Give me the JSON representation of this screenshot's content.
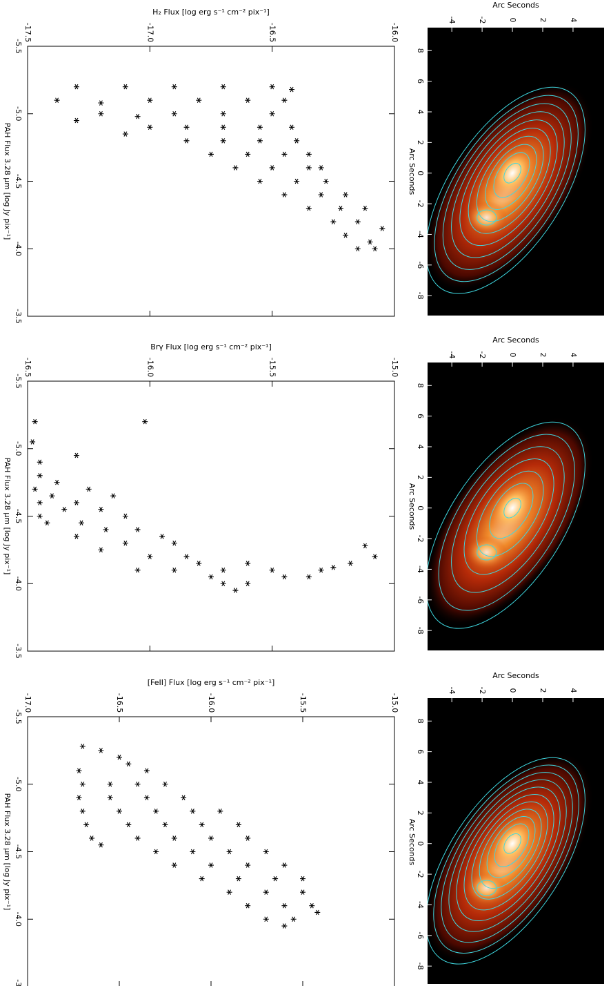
{
  "chart_data": [
    {
      "type": "scatter",
      "ylabel": "H₂ Flux [log erg s⁻¹ cm⁻² pix⁻¹]",
      "xlabel": "PAH Flux 3.28 μm [log Jy pix⁻¹]",
      "xlim": [
        -5.5,
        -3.5
      ],
      "xticks": [
        -5.5,
        {
          "value": -5,
          "label": "-5.0"
        },
        -4.5,
        {
          "value": -4,
          "label": "-4.0"
        },
        -3.5
      ],
      "ylim": [
        -17.5,
        -16.0
      ],
      "yticks": [
        -17.5,
        {
          "value": -17,
          "label": "-17.0"
        },
        -16.5,
        {
          "value": -16,
          "label": "-16.0"
        }
      ],
      "color": "#000000",
      "x": [
        -5.2,
        -5.2,
        -5.2,
        -5.2,
        -5.2,
        -5.18,
        -5.1,
        -5.08,
        -5.1,
        -5.1,
        -5.1,
        -5.1,
        -5.0,
        -4.98,
        -5.0,
        -5.0,
        -5.0,
        -4.9,
        -4.9,
        -4.9,
        -4.9,
        -4.9,
        -4.95,
        -4.85,
        -4.8,
        -4.8,
        -4.8,
        -4.8,
        -4.7,
        -4.7,
        -4.7,
        -4.7,
        -4.6,
        -4.6,
        -4.6,
        -4.6,
        -4.5,
        -4.5,
        -4.5,
        -4.4,
        -4.4,
        -4.4,
        -4.3,
        -4.3,
        -4.3,
        -4.2,
        -4.2,
        -4.15,
        -4.1,
        -4.05,
        -4.0,
        -4.0
      ],
      "values": [
        -17.3,
        -17.1,
        -16.9,
        -16.7,
        -16.5,
        -16.42,
        -17.38,
        -17.2,
        -17.0,
        -16.8,
        -16.6,
        -16.45,
        -17.2,
        -17.05,
        -16.9,
        -16.7,
        -16.5,
        -17.0,
        -16.85,
        -16.7,
        -16.55,
        -16.42,
        -17.3,
        -17.1,
        -16.85,
        -16.7,
        -16.55,
        -16.4,
        -16.75,
        -16.6,
        -16.45,
        -16.35,
        -16.65,
        -16.5,
        -16.35,
        -16.3,
        -16.55,
        -16.4,
        -16.28,
        -16.45,
        -16.3,
        -16.2,
        -16.35,
        -16.22,
        -16.12,
        -16.25,
        -16.15,
        -16.05,
        -16.2,
        -16.1,
        -16.15,
        -16.08
      ]
    },
    {
      "type": "image",
      "xlabel": "Arc Seconds",
      "ylabel": "Arc Seconds",
      "xlim": [
        -5.6,
        6.05
      ],
      "xticks": [
        -4,
        -2,
        0,
        2,
        4
      ],
      "ylim": [
        -9.3,
        9.5
      ],
      "yticks": [
        8,
        6,
        4,
        2,
        0,
        -2,
        -4,
        -6,
        -8
      ]
    },
    {
      "type": "scatter",
      "ylabel": "Brγ Flux [log erg s⁻¹ cm⁻² pix⁻¹]",
      "xlabel": "PAH Flux 3.28 μm [log Jy pix⁻¹]",
      "xlim": [
        -5.5,
        -3.5
      ],
      "xticks": [
        -5.5,
        {
          "value": -5,
          "label": "-5.0"
        },
        -4.5,
        {
          "value": -4,
          "label": "-4.0"
        },
        -3.5
      ],
      "ylim": [
        -16.5,
        -15.0
      ],
      "yticks": [
        -16.5,
        {
          "value": -16,
          "label": "-16.0"
        },
        -15.5,
        {
          "value": -15,
          "label": "-15.0"
        }
      ],
      "color": "#000000",
      "x": [
        -5.2,
        -5.2,
        -5.05,
        -4.95,
        -4.9,
        -4.8,
        -4.75,
        -4.7,
        -4.65,
        -4.6,
        -4.55,
        -4.5,
        -4.45,
        -4.7,
        -4.65,
        -4.6,
        -4.55,
        -4.5,
        -4.45,
        -4.4,
        -4.4,
        -4.35,
        -4.35,
        -4.3,
        -4.3,
        -4.25,
        -4.2,
        -4.2,
        -4.15,
        -4.1,
        -4.1,
        -4.05,
        -4.0,
        -4.0,
        -3.95,
        -4.1,
        -4.15,
        -4.1,
        -4.05,
        -4.05,
        -4.1,
        -4.12,
        -4.15,
        -4.28,
        -4.2
      ],
      "values": [
        -16.47,
        -16.02,
        -16.48,
        -16.3,
        -16.45,
        -16.45,
        -16.38,
        -16.47,
        -16.4,
        -16.45,
        -16.35,
        -16.45,
        -16.42,
        -16.25,
        -16.15,
        -16.3,
        -16.2,
        -16.1,
        -16.28,
        -16.05,
        -16.18,
        -16.3,
        -15.95,
        -16.1,
        -15.9,
        -16.2,
        -16.0,
        -15.85,
        -15.8,
        -16.05,
        -15.9,
        -15.75,
        -15.7,
        -15.6,
        -15.65,
        -15.7,
        -15.6,
        -15.5,
        -15.45,
        -15.35,
        -15.3,
        -15.25,
        -15.18,
        -15.12,
        -15.08
      ]
    },
    {
      "type": "image",
      "xlabel": "Arc Seconds",
      "ylabel": "Arc Seconds",
      "xlim": [
        -5.6,
        6.05
      ],
      "xticks": [
        -4,
        -2,
        0,
        2,
        4
      ],
      "ylim": [
        -9.3,
        9.5
      ],
      "yticks": [
        8,
        6,
        4,
        2,
        0,
        -2,
        -4,
        -6,
        -8
      ]
    },
    {
      "type": "scatter",
      "ylabel": "[FeII] Flux [log erg s⁻¹ cm⁻² pix⁻¹]",
      "xlabel": "PAH Flux 3.28 μm [log Jy pix⁻¹]",
      "xlim": [
        -5.5,
        -3.5
      ],
      "xticks": [
        -5.5,
        {
          "value": -5,
          "label": "-5.0"
        },
        -4.5,
        {
          "value": -4,
          "label": "-4.0"
        },
        -3.5
      ],
      "ylim": [
        -17.0,
        -15.0
      ],
      "yticks": [
        {
          "value": -17,
          "label": "-17.0"
        },
        -16.5,
        {
          "value": -16,
          "label": "-16.0"
        },
        -15.5,
        {
          "value": -15,
          "label": "-15.0"
        }
      ],
      "color": "#000000",
      "x": [
        -5.28,
        -5.25,
        -5.2,
        -5.15,
        -5.1,
        -5.1,
        -5.0,
        -4.9,
        -4.8,
        -4.7,
        -4.6,
        -4.55,
        -5.0,
        -5.0,
        -5.0,
        -4.9,
        -4.9,
        -4.9,
        -4.8,
        -4.8,
        -4.8,
        -4.8,
        -4.7,
        -4.7,
        -4.7,
        -4.7,
        -4.6,
        -4.6,
        -4.6,
        -4.6,
        -4.5,
        -4.5,
        -4.5,
        -4.5,
        -4.4,
        -4.4,
        -4.4,
        -4.4,
        -4.3,
        -4.3,
        -4.3,
        -4.3,
        -4.2,
        -4.2,
        -4.2,
        -4.1,
        -4.1,
        -4.1,
        -4.0,
        -4.0,
        -3.95,
        -4.05
      ],
      "values": [
        -16.7,
        -16.6,
        -16.5,
        -16.45,
        -16.35,
        -16.72,
        -16.7,
        -16.72,
        -16.7,
        -16.68,
        -16.65,
        -16.6,
        -16.55,
        -16.4,
        -16.25,
        -16.55,
        -16.35,
        -16.15,
        -16.5,
        -16.3,
        -16.1,
        -15.95,
        -16.45,
        -16.25,
        -16.05,
        -15.85,
        -16.4,
        -16.2,
        -16.0,
        -15.8,
        -16.3,
        -16.1,
        -15.9,
        -15.7,
        -16.2,
        -16.0,
        -15.8,
        -15.6,
        -16.05,
        -15.85,
        -15.65,
        -15.5,
        -15.9,
        -15.7,
        -15.5,
        -15.8,
        -15.6,
        -15.45,
        -15.7,
        -15.55,
        -15.6,
        -15.42
      ]
    },
    {
      "type": "image",
      "xlabel": "Arc Seconds",
      "ylabel": "Arc Seconds",
      "xlim": [
        -5.6,
        6.05
      ],
      "xticks": [
        -4,
        -2,
        0,
        2,
        4
      ],
      "ylim": [
        -9.3,
        9.5
      ],
      "yticks": [
        8,
        6,
        4,
        2,
        0,
        -2,
        -4,
        -6,
        -8
      ]
    }
  ]
}
